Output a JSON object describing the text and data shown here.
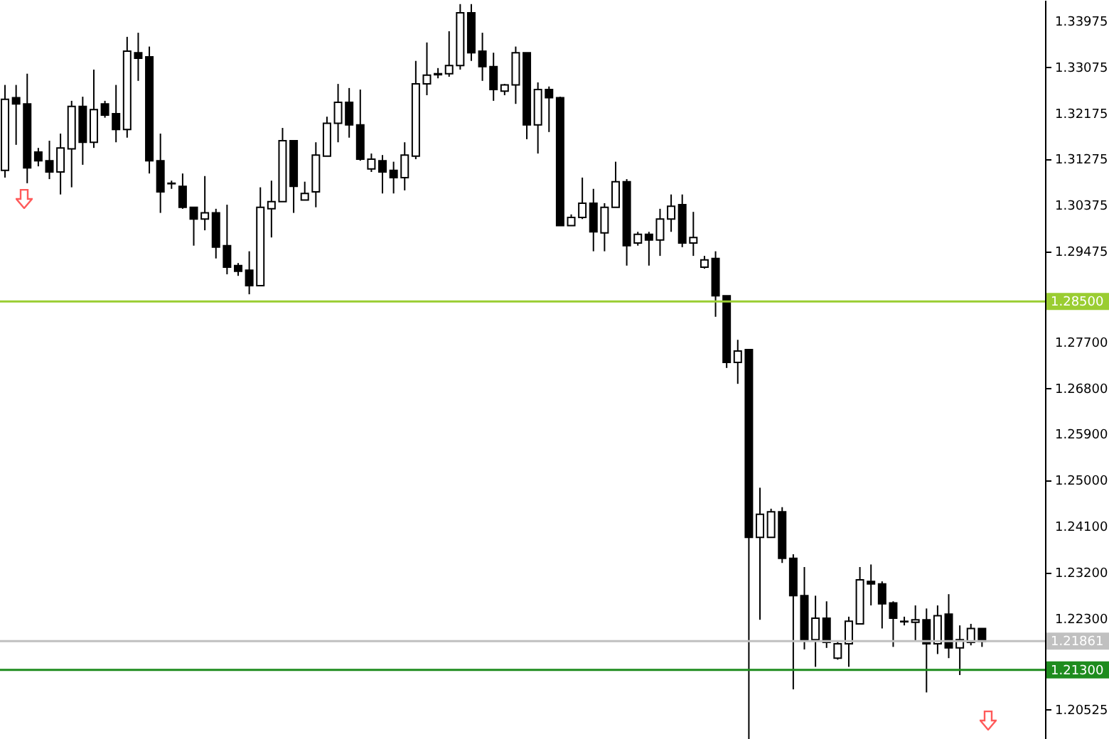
{
  "chart_data": {
    "type": "candlestick",
    "categories": [
      null,
      null,
      null,
      null,
      null,
      null,
      null,
      null,
      null,
      null,
      null,
      null,
      null,
      null,
      null,
      null,
      null,
      null,
      null,
      null,
      null,
      null,
      null,
      null,
      null,
      null,
      null,
      null,
      null,
      null,
      null,
      null,
      null,
      null,
      null,
      null,
      null,
      null,
      null,
      null,
      null,
      null,
      null,
      null,
      null,
      null,
      null,
      null,
      null,
      null,
      null,
      null,
      null,
      null,
      null,
      null,
      null,
      null,
      null,
      null,
      null,
      null,
      null,
      null,
      null,
      null,
      null,
      null,
      null,
      null,
      null,
      null,
      null,
      null,
      null,
      null,
      null,
      null,
      null,
      null,
      null,
      null,
      null,
      null,
      null,
      null,
      null,
      null,
      null
    ],
    "ohlc": [
      [
        1.3106,
        1.3273,
        1.3092,
        1.3245
      ],
      [
        1.3248,
        1.3273,
        1.3156,
        1.3236
      ],
      [
        1.3236,
        1.3295,
        1.3081,
        1.3111
      ],
      [
        1.3142,
        1.315,
        1.3114,
        1.3125
      ],
      [
        1.3125,
        1.3164,
        1.3089,
        1.3103
      ],
      [
        1.3103,
        1.3178,
        1.3059,
        1.315
      ],
      [
        1.3148,
        1.3242,
        1.3073,
        1.3231
      ],
      [
        1.3231,
        1.325,
        1.3117,
        1.3161
      ],
      [
        1.3161,
        1.3303,
        1.315,
        1.3225
      ],
      [
        1.3236,
        1.3242,
        1.3209,
        1.3214
      ],
      [
        1.3217,
        1.3273,
        1.3161,
        1.3186
      ],
      [
        1.3186,
        1.3367,
        1.317,
        1.3339
      ],
      [
        1.3336,
        1.3375,
        1.3281,
        1.3325
      ],
      [
        1.3328,
        1.3348,
        1.31,
        1.3125
      ],
      [
        1.3125,
        1.3178,
        1.3023,
        1.3064
      ],
      [
        1.3081,
        1.3086,
        1.307,
        1.308
      ],
      [
        1.3075,
        1.31,
        1.3031,
        1.3034
      ],
      [
        1.3034,
        1.3034,
        1.2959,
        1.3011
      ],
      [
        1.3011,
        1.3095,
        1.2989,
        1.3023
      ],
      [
        1.3023,
        1.3031,
        1.2934,
        1.2956
      ],
      [
        1.2959,
        1.3039,
        1.2903,
        1.2917
      ],
      [
        1.292,
        1.2925,
        1.29,
        1.2909
      ],
      [
        1.2911,
        1.2948,
        1.2864,
        1.2881
      ],
      [
        1.2881,
        1.3073,
        1.2881,
        1.3034
      ],
      [
        1.3031,
        1.3086,
        1.2975,
        1.3045
      ],
      [
        1.3045,
        1.3189,
        1.3045,
        1.3164
      ],
      [
        1.3164,
        1.3164,
        1.3023,
        1.3075
      ],
      [
        1.3048,
        1.3084,
        1.3048,
        1.3061
      ],
      [
        1.3064,
        1.3161,
        1.3034,
        1.3136
      ],
      [
        1.3134,
        1.3211,
        1.3134,
        1.3198
      ],
      [
        1.3198,
        1.3275,
        1.3161,
        1.3239
      ],
      [
        1.3239,
        1.3267,
        1.317,
        1.3195
      ],
      [
        1.3195,
        1.3264,
        1.3125,
        1.3128
      ],
      [
        1.3109,
        1.3139,
        1.3103,
        1.3128
      ],
      [
        1.3125,
        1.3136,
        1.3061,
        1.3103
      ],
      [
        1.3106,
        1.3123,
        1.3061,
        1.3092
      ],
      [
        1.3092,
        1.3161,
        1.3067,
        1.3136
      ],
      [
        1.3134,
        1.332,
        1.3128,
        1.3275
      ],
      [
        1.3275,
        1.3356,
        1.3253,
        1.3292
      ],
      [
        1.3295,
        1.3306,
        1.3286,
        1.3293
      ],
      [
        1.3295,
        1.3378,
        1.3289,
        1.3311
      ],
      [
        1.3311,
        1.3431,
        1.3303,
        1.3414
      ],
      [
        1.3414,
        1.3431,
        1.332,
        1.3336
      ],
      [
        1.3339,
        1.3375,
        1.3281,
        1.3309
      ],
      [
        1.3309,
        1.3336,
        1.3242,
        1.3264
      ],
      [
        1.3261,
        1.3275,
        1.3253,
        1.3273
      ],
      [
        1.3273,
        1.3348,
        1.3236,
        1.3336
      ],
      [
        1.3336,
        1.3336,
        1.3167,
        1.3195
      ],
      [
        1.3195,
        1.3278,
        1.3139,
        1.3264
      ],
      [
        1.3264,
        1.327,
        1.3181,
        1.3248
      ],
      [
        1.3248,
        1.325,
        1.2998,
        1.2998
      ],
      [
        1.2998,
        1.302,
        1.2998,
        1.3014
      ],
      [
        1.3014,
        1.3092,
        1.3011,
        1.3042
      ],
      [
        1.3042,
        1.307,
        1.2948,
        1.2986
      ],
      [
        1.2984,
        1.3042,
        1.2948,
        1.3034
      ],
      [
        1.3034,
        1.3123,
        1.3034,
        1.3084
      ],
      [
        1.3084,
        1.3089,
        1.292,
        1.2959
      ],
      [
        1.2964,
        1.2986,
        1.2959,
        1.2981
      ],
      [
        1.2981,
        1.2986,
        1.292,
        1.297
      ],
      [
        1.297,
        1.3031,
        1.2939,
        1.3011
      ],
      [
        1.3011,
        1.3059,
        1.2986,
        1.3036
      ],
      [
        1.3039,
        1.3059,
        1.2956,
        1.2964
      ],
      [
        1.2964,
        1.3025,
        1.2939,
        1.2975
      ],
      [
        1.2917,
        1.2939,
        1.2914,
        1.2931
      ],
      [
        1.2934,
        1.2948,
        1.282,
        1.2861
      ],
      [
        1.2861,
        1.2861,
        1.272,
        1.2731
      ],
      [
        1.2731,
        1.2775,
        1.2689,
        1.2753
      ],
      [
        1.2756,
        1.2756,
        1.1995,
        1.2389
      ],
      [
        1.2389,
        1.2486,
        1.2228,
        1.2434
      ],
      [
        1.2389,
        1.2445,
        1.2389,
        1.2439
      ],
      [
        1.2439,
        1.2448,
        1.2339,
        1.2348
      ],
      [
        1.2348,
        1.2356,
        1.2092,
        1.2275
      ],
      [
        1.2275,
        1.2331,
        1.217,
        1.2189
      ],
      [
        1.2189,
        1.2275,
        1.2136,
        1.2231
      ],
      [
        1.2231,
        1.2264,
        1.2173,
        1.2184
      ],
      [
        1.2153,
        1.2186,
        1.215,
        1.2181
      ],
      [
        1.2181,
        1.2234,
        1.2136,
        1.2225
      ],
      [
        1.222,
        1.2331,
        1.222,
        1.2306
      ],
      [
        1.2303,
        1.2336,
        1.2256,
        1.2298
      ],
      [
        1.2298,
        1.2303,
        1.2211,
        1.2259
      ],
      [
        1.2261,
        1.2264,
        1.2175,
        1.2231
      ],
      [
        1.2225,
        1.2234,
        1.2217,
        1.2224
      ],
      [
        1.2223,
        1.2256,
        1.2186,
        1.2228
      ],
      [
        1.2228,
        1.225,
        1.2086,
        1.2181
      ],
      [
        1.2181,
        1.2256,
        1.2161,
        1.2236
      ],
      [
        1.2239,
        1.2278,
        1.2153,
        1.2173
      ],
      [
        1.2173,
        1.2217,
        1.212,
        1.2189
      ],
      [
        1.2184,
        1.222,
        1.2178,
        1.2211
      ],
      [
        1.2211,
        1.2211,
        1.2175,
        1.2186
      ]
    ],
    "ylim": [
      1.1995,
      1.3439
    ],
    "yticks": [
      1.33975,
      1.33075,
      1.32175,
      1.31275,
      1.30375,
      1.29475,
      {
        "value": 1.277,
        "label": "1.27700"
      },
      {
        "value": 1.268,
        "label": "1.26800"
      },
      {
        "value": 1.259,
        "label": "1.25900"
      },
      {
        "value": 1.25,
        "label": "1.25000"
      },
      {
        "value": 1.241,
        "label": "1.24100"
      },
      {
        "value": 1.232,
        "label": "1.23200"
      },
      {
        "value": 1.223,
        "label": "1.22300"
      },
      1.20525
    ],
    "ref_lines": [
      {
        "axis": "y",
        "value": 1.285,
        "label": "1.28500",
        "color": "#9acd32"
      },
      {
        "axis": "y",
        "value": 1.21861,
        "label": "1.21861",
        "color": "#c0c0c0"
      },
      {
        "axis": "y",
        "value": 1.213,
        "label": "1.21300",
        "color": "#1e8c1e"
      }
    ],
    "tick_labels": "y",
    "grid": false
  }
}
